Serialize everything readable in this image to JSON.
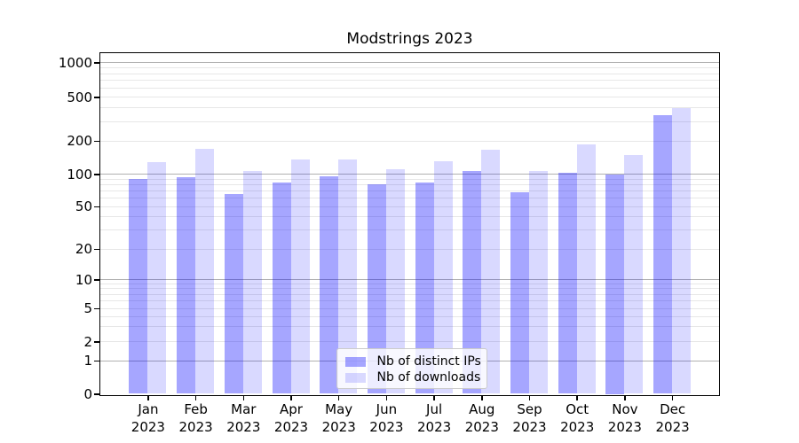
{
  "chart_data": {
    "type": "bar",
    "title": "Modstrings 2023",
    "categories": [
      "Jan",
      "Feb",
      "Mar",
      "Apr",
      "May",
      "Jun",
      "Jul",
      "Aug",
      "Sep",
      "Oct",
      "Nov",
      "Dec"
    ],
    "x_label_year": "2023",
    "series": [
      {
        "name": "Nb of distinct IPs",
        "color": "rgba(0,0,255,0.35)",
        "values": [
          90,
          93,
          65,
          84,
          96,
          81,
          84,
          107,
          68,
          102,
          100,
          340
        ]
      },
      {
        "name": "Nb of downloads",
        "color": "rgba(0,0,255,0.15)",
        "values": [
          128,
          170,
          106,
          135,
          136,
          110,
          130,
          165,
          106,
          186,
          150,
          395
        ]
      }
    ],
    "y_axis": {
      "scale": "symlog",
      "ylim": [
        0,
        1000
      ],
      "labeled_ticks": [
        0,
        1,
        2,
        5,
        10,
        20,
        50,
        100,
        200,
        500,
        1000
      ],
      "major_grid_values": [
        1,
        10,
        100,
        1000
      ],
      "minor_grid_values": [
        2,
        3,
        4,
        5,
        6,
        7,
        8,
        9,
        20,
        30,
        40,
        50,
        60,
        70,
        80,
        90,
        200,
        300,
        400,
        500,
        600,
        700,
        800,
        900
      ]
    },
    "grid": true,
    "legend_position": "lower center"
  },
  "colors": {
    "major_grid": "#b0b0b0",
    "minor_grid": "#e7e7e7",
    "spine": "#000000",
    "bar_distinct_ips": "rgba(0,0,255,0.35)",
    "bar_downloads": "rgba(0,0,255,0.15)"
  }
}
